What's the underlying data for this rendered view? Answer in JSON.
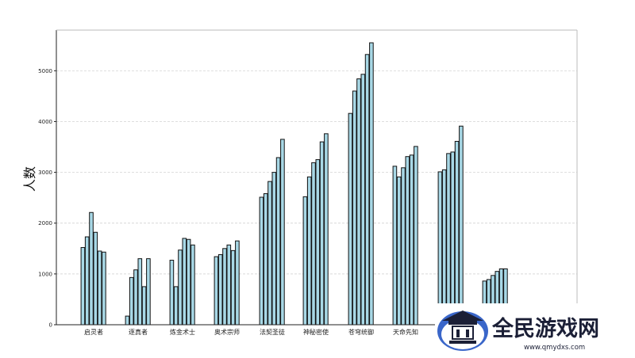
{
  "chart_data": {
    "type": "bar",
    "ylabel": "人数",
    "yticks": [
      0,
      1000,
      2000,
      3000,
      4000,
      5000
    ],
    "ylim": [
      0,
      5800
    ],
    "grid": "horizontal-dashed",
    "categories": [
      "启灵者",
      "逐真者",
      "炼金术士",
      "奥术宗师",
      "法契圣徒",
      "神秘密使",
      "苍穹统御",
      "天命先知",
      "",
      ""
    ],
    "groups": [
      [
        1520,
        1730,
        2210,
        1820,
        1450,
        1430
      ],
      [
        170,
        930,
        1080,
        1300,
        750,
        1300
      ],
      [
        1270,
        750,
        1470,
        1700,
        1680,
        1570
      ],
      [
        1340,
        1380,
        1500,
        1570,
        1460,
        1650
      ],
      [
        2510,
        2580,
        2820,
        3000,
        3290,
        3650
      ],
      [
        2520,
        2910,
        3190,
        3250,
        3600,
        3760
      ],
      [
        4160,
        4600,
        4840,
        4930,
        5320,
        5550
      ],
      [
        3120,
        2910,
        3090,
        3310,
        3340,
        3510
      ],
      [
        3010,
        3050,
        3370,
        3400,
        3610,
        3910
      ],
      [
        860,
        890,
        970,
        1050,
        1100,
        1100
      ]
    ],
    "bar_color": "#a8d8e6",
    "edge_color": "#111111"
  },
  "watermark": {
    "text": "全民游戏网",
    "url": "www.qmydxs.com"
  }
}
